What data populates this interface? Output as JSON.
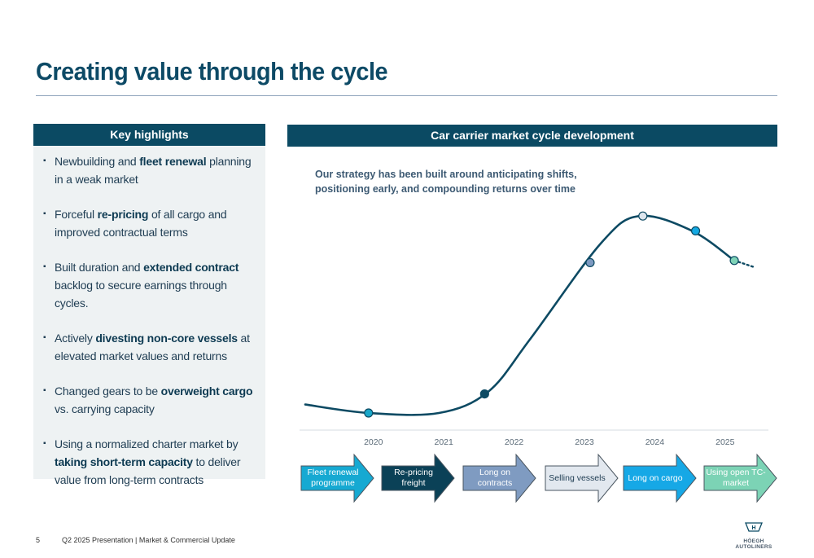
{
  "title": "Creating value through the cycle",
  "highlights": {
    "header": "Key highlights",
    "items": [
      {
        "pre": "Newbuilding and ",
        "bold": "fleet renewal",
        "post": " planning in a weak market"
      },
      {
        "pre": "Forceful ",
        "bold": "re-pricing",
        "post": " of all cargo and improved contractual terms"
      },
      {
        "pre": "Built duration and ",
        "bold": "extended contract",
        "post": " backlog to secure earnings through cycles."
      },
      {
        "pre": "Actively ",
        "bold": "divesting non-core vessels",
        "post": " at elevated market values and returns"
      },
      {
        "pre": "Changed gears to be ",
        "bold": "overweight cargo",
        "post": " vs. carrying capacity"
      },
      {
        "pre": "Using a normalized charter market by ",
        "bold": "taking short-term capacity",
        "post": " to deliver value from long-term contracts"
      }
    ]
  },
  "chart_panel": {
    "header": "Car carrier market cycle development",
    "strategy_text": "Our strategy has been built around anticipating shifts, positioning early, and compounding returns over time"
  },
  "chart_data": {
    "type": "line",
    "title": "Car carrier market cycle development",
    "categories": [
      "2020",
      "2021",
      "2022",
      "2023",
      "2024",
      "2025"
    ],
    "x_range": [
      2019.1,
      2025.5
    ],
    "y_range": [
      0,
      100
    ],
    "curve": [
      {
        "x": 2019.1,
        "y": 4
      },
      {
        "x": 2020.0,
        "y": 0
      },
      {
        "x": 2021.0,
        "y": 0
      },
      {
        "x": 2021.7,
        "y": 10
      },
      {
        "x": 2022.3,
        "y": 35
      },
      {
        "x": 2023.3,
        "y": 80
      },
      {
        "x": 2023.85,
        "y": 93
      },
      {
        "x": 2024.6,
        "y": 86
      },
      {
        "x": 2025.2,
        "y": 72
      }
    ],
    "markers": [
      {
        "x": 2020.0,
        "y": 0,
        "color": "#19a7c9"
      },
      {
        "x": 2021.65,
        "y": 9,
        "color": "#0d4a63"
      },
      {
        "x": 2023.15,
        "y": 71,
        "color": "#7d9ac1"
      },
      {
        "x": 2023.9,
        "y": 93,
        "color": "#dde6ee"
      },
      {
        "x": 2024.65,
        "y": 86,
        "color": "#14a9e3"
      },
      {
        "x": 2025.2,
        "y": 72,
        "color": "#7fd3b7"
      }
    ],
    "trend": "dotted continuation after 2025",
    "grid": false,
    "legend": "none"
  },
  "phases": [
    {
      "label": "Fleet renewal programme",
      "fill": "#16a9d2",
      "text_color": "#ffffff"
    },
    {
      "label": "Re-pricing freight",
      "fill": "#0b4157",
      "text_color": "#ffffff"
    },
    {
      "label": "Long on contracts",
      "fill": "#7f9bc1",
      "text_color": "#ffffff"
    },
    {
      "label": "Selling vessels",
      "fill": "#e2e8ef",
      "text_color": "#1e3c52"
    },
    {
      "label": "Long on cargo",
      "fill": "#16a8e6",
      "text_color": "#ffffff"
    },
    {
      "label": "Using open TC-market",
      "fill": "#7cd3b5",
      "text_color": "#ffffff"
    }
  ],
  "footer": {
    "page": "5",
    "text": "Q2 2025 Presentation | Market & Commercial Update"
  },
  "logo": {
    "text": "HÖEGH AUTOLINERS",
    "icon": "ship-flag-icon",
    "colors": {
      "primary": "#0b4a63"
    }
  }
}
